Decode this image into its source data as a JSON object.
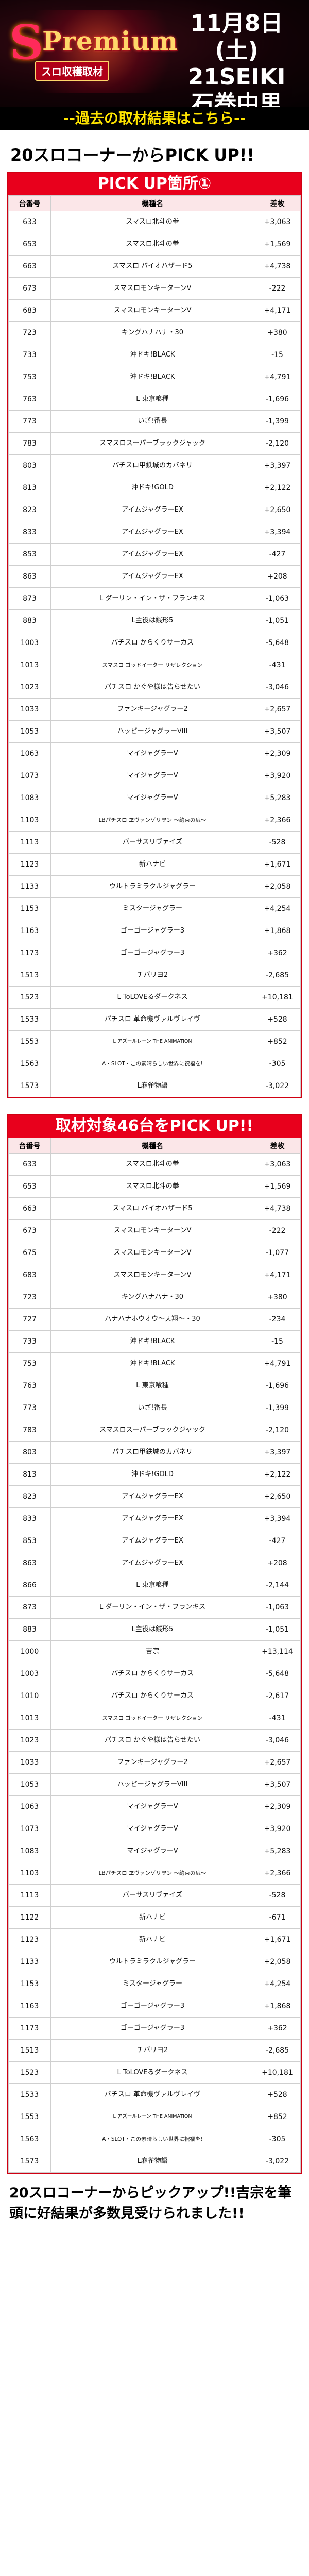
{
  "header": {
    "logo_s": "S",
    "logo_main": "Premium",
    "logo_sub": "スロ収穫取材",
    "date": "11月8日(土)",
    "store": "21SEIKI",
    "location": "石巻中里"
  },
  "notice": "--過去の取材結果はこちら--",
  "pickup_title": "20スロコーナーからPICK UP!!",
  "table1": {
    "title": "PICK UP箇所①",
    "columns": [
      "台番号",
      "機種名",
      "差枚"
    ],
    "rows": [
      [
        "633",
        "スマスロ北斗の拳",
        "+3,063"
      ],
      [
        "653",
        "スマスロ北斗の拳",
        "+1,569"
      ],
      [
        "663",
        "スマスロ バイオハザード5",
        "+4,738"
      ],
      [
        "673",
        "スマスロモンキーターンV",
        "-222"
      ],
      [
        "683",
        "スマスロモンキーターンV",
        "+4,171"
      ],
      [
        "723",
        "キングハナハナ・30",
        "+380"
      ],
      [
        "733",
        "沖ドキ!BLACK",
        "-15"
      ],
      [
        "753",
        "沖ドキ!BLACK",
        "+4,791"
      ],
      [
        "763",
        "L 東京喰種",
        "-1,696"
      ],
      [
        "773",
        "いざ!番長",
        "-1,399"
      ],
      [
        "783",
        "スマスロスーパーブラックジャック",
        "-2,120"
      ],
      [
        "803",
        "パチスロ甲鉄城のカバネリ",
        "+3,397"
      ],
      [
        "813",
        "沖ドキ!GOLD",
        "+2,122"
      ],
      [
        "823",
        "アイムジャグラーEX",
        "+2,650"
      ],
      [
        "833",
        "アイムジャグラーEX",
        "+3,394"
      ],
      [
        "853",
        "アイムジャグラーEX",
        "-427"
      ],
      [
        "863",
        "アイムジャグラーEX",
        "+208"
      ],
      [
        "873",
        "L ダーリン・イン・ザ・フランキス",
        "-1,063"
      ],
      [
        "883",
        "L主役は銭形5",
        "-1,051"
      ],
      [
        "1003",
        "パチスロ からくりサーカス",
        "-5,648"
      ],
      [
        "1013",
        "スマスロ ゴッドイーター リザレクション",
        "-431"
      ],
      [
        "1023",
        "パチスロ かぐや様は告らせたい",
        "-3,046"
      ],
      [
        "1033",
        "ファンキージャグラー2",
        "+2,657"
      ],
      [
        "1053",
        "ハッピージャグラーVIII",
        "+3,507"
      ],
      [
        "1063",
        "マイジャグラーV",
        "+2,309"
      ],
      [
        "1073",
        "マイジャグラーV",
        "+3,920"
      ],
      [
        "1083",
        "マイジャグラーV",
        "+5,283"
      ],
      [
        "1103",
        "LBパチスロ ヱヴァンゲリヲン ～約束の扉～",
        "+2,366"
      ],
      [
        "1113",
        "バーサスリヴァイズ",
        "-528"
      ],
      [
        "1123",
        "新ハナビ",
        "+1,671"
      ],
      [
        "1133",
        "ウルトラミラクルジャグラー",
        "+2,058"
      ],
      [
        "1153",
        "ミスタージャグラー",
        "+4,254"
      ],
      [
        "1163",
        "ゴーゴージャグラー3",
        "+1,868"
      ],
      [
        "1173",
        "ゴーゴージャグラー3",
        "+362"
      ],
      [
        "1513",
        "チバリヨ2",
        "-2,685"
      ],
      [
        "1523",
        "L ToLOVEるダークネス",
        "+10,181"
      ],
      [
        "1533",
        "パチスロ 革命機ヴァルヴレイヴ",
        "+528"
      ],
      [
        "1553",
        "L アズールレーン THE ANIMATION",
        "+852"
      ],
      [
        "1563",
        "A・SLOT・この素晴らしい世界に祝福を!",
        "-305"
      ],
      [
        "1573",
        "L麻雀物語",
        "-3,022"
      ]
    ]
  },
  "table2": {
    "title": "取材対象46台をPICK UP!!",
    "columns": [
      "台番号",
      "機種名",
      "差枚"
    ],
    "rows": [
      [
        "633",
        "スマスロ北斗の拳",
        "+3,063"
      ],
      [
        "653",
        "スマスロ北斗の拳",
        "+1,569"
      ],
      [
        "663",
        "スマスロ バイオハザード5",
        "+4,738"
      ],
      [
        "673",
        "スマスロモンキーターンV",
        "-222"
      ],
      [
        "675",
        "スマスロモンキーターンV",
        "-1,077"
      ],
      [
        "683",
        "スマスロモンキーターンV",
        "+4,171"
      ],
      [
        "723",
        "キングハナハナ・30",
        "+380"
      ],
      [
        "727",
        "ハナハナホウオウ～天翔～・30",
        "-234"
      ],
      [
        "733",
        "沖ドキ!BLACK",
        "-15"
      ],
      [
        "753",
        "沖ドキ!BLACK",
        "+4,791"
      ],
      [
        "763",
        "L 東京喰種",
        "-1,696"
      ],
      [
        "773",
        "いざ!番長",
        "-1,399"
      ],
      [
        "783",
        "スマスロスーパーブラックジャック",
        "-2,120"
      ],
      [
        "803",
        "パチスロ甲鉄城のカバネリ",
        "+3,397"
      ],
      [
        "813",
        "沖ドキ!GOLD",
        "+2,122"
      ],
      [
        "823",
        "アイムジャグラーEX",
        "+2,650"
      ],
      [
        "833",
        "アイムジャグラーEX",
        "+3,394"
      ],
      [
        "853",
        "アイムジャグラーEX",
        "-427"
      ],
      [
        "863",
        "アイムジャグラーEX",
        "+208"
      ],
      [
        "866",
        "L 東京喰種",
        "-2,144"
      ],
      [
        "873",
        "L ダーリン・イン・ザ・フランキス",
        "-1,063"
      ],
      [
        "883",
        "L主役は銭形5",
        "-1,051"
      ],
      [
        "1000",
        "吉宗",
        "+13,114"
      ],
      [
        "1003",
        "パチスロ からくりサーカス",
        "-5,648"
      ],
      [
        "1010",
        "パチスロ からくりサーカス",
        "-2,617"
      ],
      [
        "1013",
        "スマスロ ゴッドイーター リザレクション",
        "-431"
      ],
      [
        "1023",
        "パチスロ かぐや様は告らせたい",
        "-3,046"
      ],
      [
        "1033",
        "ファンキージャグラー2",
        "+2,657"
      ],
      [
        "1053",
        "ハッピージャグラーVIII",
        "+3,507"
      ],
      [
        "1063",
        "マイジャグラーV",
        "+2,309"
      ],
      [
        "1073",
        "マイジャグラーV",
        "+3,920"
      ],
      [
        "1083",
        "マイジャグラーV",
        "+5,283"
      ],
      [
        "1103",
        "LBパチスロ ヱヴァンゲリヲン ～約束の扉～",
        "+2,366"
      ],
      [
        "1113",
        "バーサスリヴァイズ",
        "-528"
      ],
      [
        "1122",
        "新ハナビ",
        "-671"
      ],
      [
        "1123",
        "新ハナビ",
        "+1,671"
      ],
      [
        "1133",
        "ウルトラミラクルジャグラー",
        "+2,058"
      ],
      [
        "1153",
        "ミスタージャグラー",
        "+4,254"
      ],
      [
        "1163",
        "ゴーゴージャグラー3",
        "+1,868"
      ],
      [
        "1173",
        "ゴーゴージャグラー3",
        "+362"
      ],
      [
        "1513",
        "チバリヨ2",
        "-2,685"
      ],
      [
        "1523",
        "L ToLOVEるダークネス",
        "+10,181"
      ],
      [
        "1533",
        "パチスロ 革命機ヴァルヴレイヴ",
        "+528"
      ],
      [
        "1553",
        "L アズールレーン THE ANIMATION",
        "+852"
      ],
      [
        "1563",
        "A・SLOT・この素晴らしい世界に祝福を!",
        "-305"
      ],
      [
        "1573",
        "L麻雀物語",
        "-3,022"
      ]
    ]
  },
  "footer": "20スロコーナーからピックアップ!!吉宗を筆頭に好結果が多数見受けられました!!",
  "colors": {
    "accent_red": "#e8001c",
    "header_bg": "#fbe6e8",
    "notice_text": "#ffe400"
  }
}
